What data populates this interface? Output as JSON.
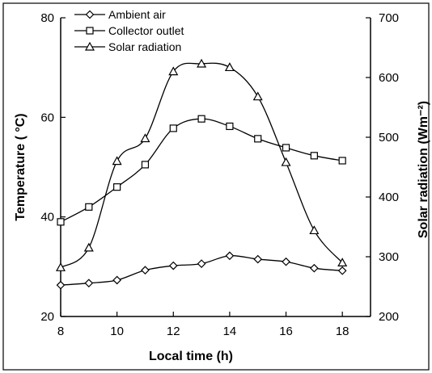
{
  "chart_data": {
    "type": "line",
    "xlabel": "Local time (h)",
    "ylabel_left": "Temperature ( °C)",
    "ylabel_right": "Solar radiation (Wm⁻²)",
    "x_ticks": [
      8,
      10,
      12,
      14,
      16,
      18
    ],
    "y_left_ticks": [
      20,
      40,
      60,
      80
    ],
    "y_right_ticks": [
      200,
      300,
      400,
      500,
      600,
      700
    ],
    "xlim": [
      8,
      19
    ],
    "ylim_left": [
      20,
      80
    ],
    "ylim_right": [
      200,
      700
    ],
    "legend_position": "top-left",
    "grid": false,
    "x": [
      8,
      9,
      10,
      11,
      12,
      13,
      14,
      15,
      16,
      17,
      18
    ],
    "series": [
      {
        "name": "Ambient air",
        "axis": "left",
        "marker": "diamond",
        "values": [
          26.3,
          26.7,
          27.3,
          29.3,
          30.2,
          30.6,
          32.2,
          31.5,
          31.0,
          29.7,
          29.2
        ]
      },
      {
        "name": "Collector outlet",
        "axis": "left",
        "marker": "square",
        "values": [
          39.0,
          42.0,
          46.0,
          50.5,
          57.8,
          59.7,
          58.2,
          55.7,
          53.9,
          52.3,
          51.3
        ]
      },
      {
        "name": "Solar radiation",
        "axis": "right",
        "marker": "triangle",
        "values": [
          282,
          315,
          460,
          498,
          610,
          623,
          617,
          568,
          458,
          344,
          290
        ]
      }
    ]
  }
}
